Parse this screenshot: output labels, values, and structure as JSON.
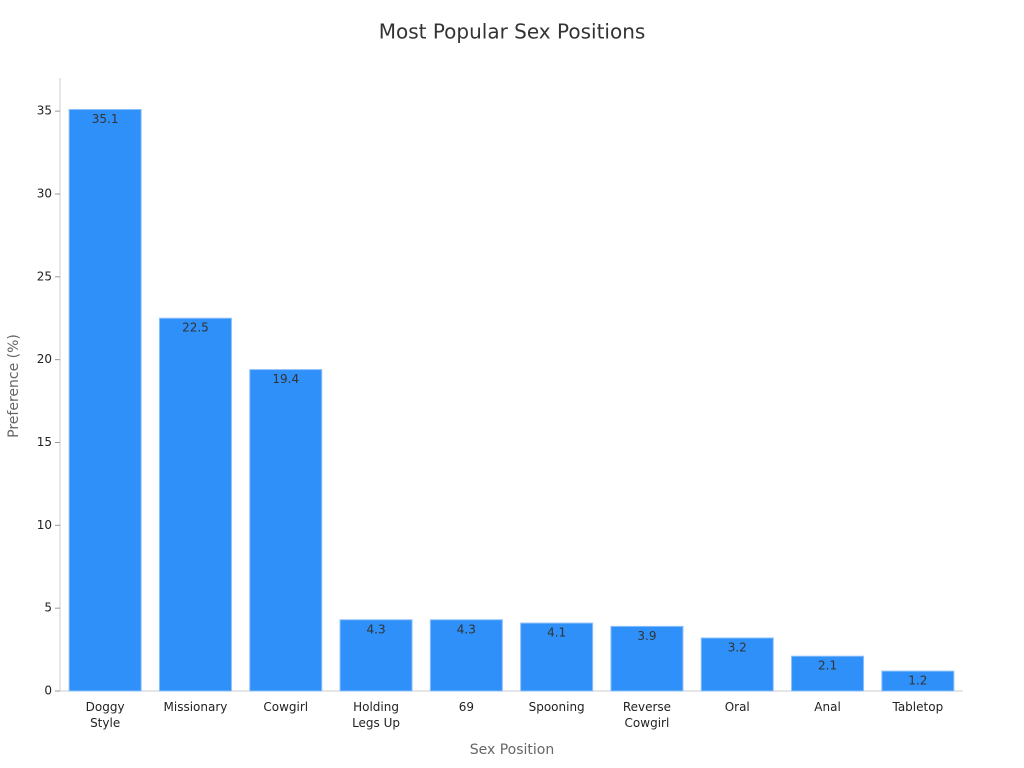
{
  "chart_data": {
    "type": "bar",
    "title": "Most Popular Sex Positions",
    "x_label": "Sex Position",
    "y_label": "Preference (%)",
    "categories": [
      "Doggy\nStyle",
      "Missionary",
      "Cowgirl",
      "Holding\nLegs Up",
      "69",
      "Spooning",
      "Reverse\nCowgirl",
      "Oral",
      "Anal",
      "Tabletop"
    ],
    "values": [
      35.1,
      22.5,
      19.4,
      4.3,
      4.3,
      4.1,
      3.9,
      3.2,
      2.1,
      1.2
    ],
    "color": "#2e90f8",
    "ylim": [
      0,
      37
    ],
    "yticks": [
      0,
      5,
      10,
      15,
      20,
      25,
      30,
      35
    ],
    "grid": false
  }
}
